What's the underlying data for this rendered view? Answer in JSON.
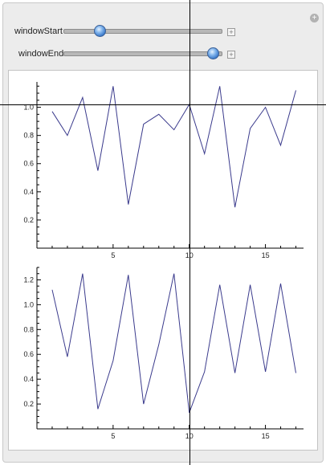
{
  "controls": {
    "window_start": {
      "label": "windowStart",
      "value_fraction": 0.23
    },
    "window_end": {
      "label": "windowEnd",
      "value_fraction": 0.95
    },
    "plus_glyph": "+",
    "close_glyph": "+"
  },
  "colors": {
    "series": "#3a3a8c",
    "axes": "#000000"
  },
  "chart_data": [
    {
      "type": "line",
      "x": [
        1,
        2,
        3,
        4,
        5,
        6,
        7,
        8,
        9,
        10,
        11,
        12,
        13,
        14,
        15,
        16,
        17
      ],
      "values": [
        0.97,
        0.8,
        1.07,
        0.55,
        1.15,
        0.31,
        0.88,
        0.95,
        0.84,
        1.02,
        0.67,
        1.15,
        0.29,
        0.85,
        1.0,
        0.73,
        1.12
      ],
      "xlim": [
        0,
        17.5
      ],
      "ylim": [
        0,
        1.18
      ],
      "xticks": [
        "5",
        "10",
        "15"
      ],
      "yticks": [
        "0.2",
        "0.4",
        "0.6",
        "0.8",
        "1.0"
      ]
    },
    {
      "type": "line",
      "x": [
        1,
        2,
        3,
        4,
        5,
        6,
        7,
        8,
        9,
        10,
        11,
        12,
        13,
        14,
        15,
        16,
        17
      ],
      "values": [
        1.12,
        0.58,
        1.25,
        0.16,
        0.55,
        1.24,
        0.2,
        0.68,
        1.25,
        0.13,
        0.46,
        1.16,
        0.45,
        1.16,
        0.46,
        1.17,
        0.45
      ],
      "xlim": [
        0,
        17.5
      ],
      "ylim": [
        0,
        1.3
      ],
      "xticks": [
        "5",
        "10",
        "15"
      ],
      "yticks": [
        "0.2",
        "0.4",
        "0.6",
        "0.8",
        "1.0",
        "1.2"
      ]
    }
  ]
}
